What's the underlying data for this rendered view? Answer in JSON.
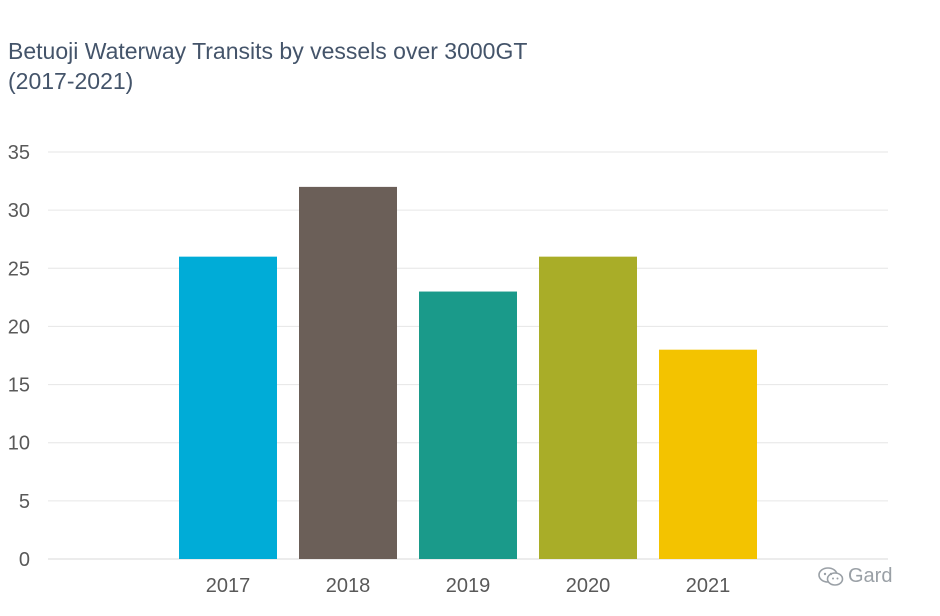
{
  "chart_data": {
    "type": "bar",
    "title_lines": [
      "Betuoji Waterway Transits by vessels over 3000GT",
      "(2017-2021)"
    ],
    "categories": [
      "2017",
      "2018",
      "2019",
      "2020",
      "2021"
    ],
    "values": [
      26,
      32,
      23,
      26,
      18
    ],
    "bar_colors": [
      "#00acd7",
      "#6b5f58",
      "#1a9a8a",
      "#a9ad28",
      "#f3c300"
    ],
    "ylim": [
      0,
      35
    ],
    "yticks": [
      "0",
      "5",
      "10",
      "15",
      "20",
      "25",
      "30",
      "35"
    ],
    "xlabel": "",
    "ylabel": "",
    "grid": true,
    "legend": "none"
  },
  "watermark": {
    "text": "Gard",
    "icon": "wechat-icon"
  }
}
